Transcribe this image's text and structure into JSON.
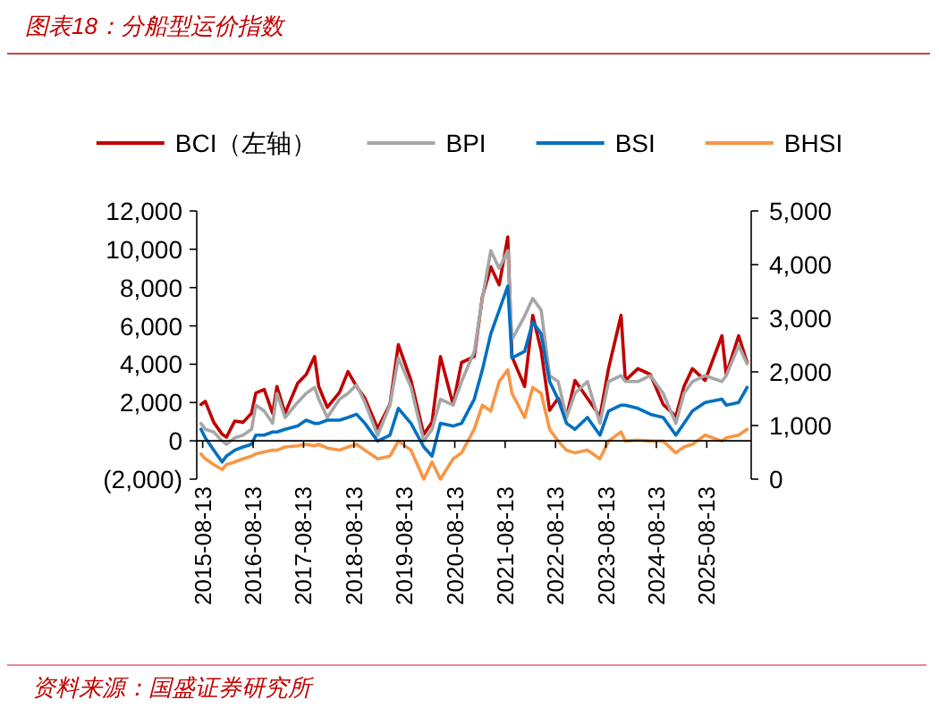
{
  "chart_data": {
    "type": "line",
    "title": "图表18：分船型运价指数",
    "annotations": [
      "资料来源：国盛证券研究所"
    ],
    "legend": "top",
    "x": [
      "2015-08",
      "2015-09",
      "2015-11",
      "2016-01",
      "2016-02",
      "2016-04",
      "2016-06",
      "2016-08",
      "2016-09",
      "2016-11",
      "2017-01",
      "2017-02",
      "2017-04",
      "2017-07",
      "2017-09",
      "2017-11",
      "2017-12",
      "2018-02",
      "2018-05",
      "2018-07",
      "2018-09",
      "2018-11",
      "2019-02",
      "2019-05",
      "2019-07",
      "2019-10",
      "2020-01",
      "2020-03",
      "2020-05",
      "2020-08",
      "2020-10",
      "2021-01",
      "2021-03",
      "2021-05",
      "2021-07",
      "2021-09",
      "2021-10",
      "2022-01",
      "2022-03",
      "2022-05",
      "2022-07",
      "2022-09",
      "2022-11",
      "2023-01",
      "2023-04",
      "2023-07",
      "2023-09",
      "2023-12",
      "2024-01",
      "2024-04",
      "2024-07",
      "2024-10",
      "2025-01",
      "2025-03",
      "2025-05",
      "2025-08",
      "2025-12",
      "2026-01",
      "2026-04",
      "2026-06"
    ],
    "series": [
      {
        "name": "BCI（左轴）",
        "color": "#c00000",
        "axis": "y",
        "values": [
          1900,
          2060,
          970,
          340,
          190,
          1030,
          970,
          1440,
          2500,
          2680,
          1440,
          2840,
          1440,
          3000,
          3460,
          4400,
          2840,
          1750,
          2530,
          3620,
          2840,
          2220,
          650,
          1900,
          5020,
          3150,
          340,
          970,
          4400,
          1900,
          4090,
          4400,
          7520,
          9080,
          8140,
          10640,
          4400,
          2840,
          6550,
          4710,
          1590,
          2220,
          1280,
          3150,
          2220,
          1280,
          3770,
          6550,
          3150,
          3770,
          3460,
          1900,
          1280,
          2840,
          3770,
          3150,
          5490,
          3460,
          5490,
          4090
        ]
      },
      {
        "name": "BPI",
        "color": "#a6a6a6",
        "axis": "y2",
        "values": [
          1040,
          930,
          880,
          710,
          650,
          770,
          820,
          930,
          1380,
          1270,
          1040,
          1600,
          1150,
          1430,
          1600,
          1710,
          1490,
          1150,
          1490,
          1600,
          1760,
          1430,
          820,
          1380,
          2260,
          1710,
          710,
          930,
          1490,
          1380,
          1820,
          2380,
          3370,
          4260,
          3930,
          4260,
          2600,
          3040,
          3370,
          3150,
          1930,
          1820,
          1150,
          1600,
          1820,
          1040,
          1820,
          1930,
          1820,
          1820,
          1930,
          1600,
          1040,
          1600,
          1820,
          1930,
          1820,
          1930,
          2490,
          2150
        ]
      },
      {
        "name": "BSI",
        "color": "#0070c0",
        "axis": "y2",
        "values": [
          930,
          770,
          540,
          320,
          430,
          540,
          600,
          650,
          820,
          820,
          880,
          880,
          930,
          990,
          1100,
          1040,
          1040,
          1100,
          1100,
          1150,
          1210,
          1040,
          710,
          820,
          1320,
          1040,
          600,
          430,
          1040,
          990,
          1040,
          1490,
          2040,
          2710,
          3150,
          3600,
          2260,
          2380,
          2930,
          2710,
          1820,
          1490,
          1040,
          930,
          1150,
          820,
          1270,
          1380,
          1380,
          1320,
          1210,
          1150,
          820,
          1040,
          1270,
          1430,
          1490,
          1380,
          1430,
          1710
        ]
      },
      {
        "name": "BHSI",
        "color": "#f79646",
        "axis": "y2",
        "values": [
          470,
          380,
          270,
          180,
          270,
          320,
          380,
          430,
          470,
          510,
          540,
          540,
          600,
          620,
          650,
          620,
          650,
          580,
          540,
          600,
          650,
          540,
          380,
          430,
          710,
          540,
          0,
          320,
          0,
          380,
          490,
          930,
          1380,
          1270,
          1820,
          2040,
          1600,
          1150,
          1710,
          1600,
          930,
          710,
          540,
          490,
          540,
          380,
          710,
          880,
          710,
          730,
          710,
          710,
          490,
          600,
          650,
          820,
          710,
          770,
          820,
          930
        ]
      }
    ],
    "xlim": [
      "2015-07-01",
      "2026-07-01"
    ],
    "xticks": [
      "2015-08-13",
      "2016-08-13",
      "2017-08-13",
      "2018-08-13",
      "2019-08-13",
      "2020-08-13",
      "2021-08-13",
      "2022-08-13",
      "2023-08-13",
      "2024-08-13",
      "2025-08-13"
    ],
    "ylim": [
      -2000,
      12000
    ],
    "yticks": [
      {
        "value": -2000,
        "label": "(2,000)"
      },
      0,
      {
        "value": 2000,
        "label": "2,000"
      },
      {
        "value": 4000,
        "label": "4,000"
      },
      {
        "value": 6000,
        "label": "6,000"
      },
      {
        "value": 8000,
        "label": "8,000"
      },
      {
        "value": 10000,
        "label": "10,000"
      },
      {
        "value": 12000,
        "label": "12,000"
      }
    ],
    "y2lim": [
      0,
      5000
    ],
    "y2ticks": [
      0,
      {
        "value": 1000,
        "label": "1,000"
      },
      {
        "value": 2000,
        "label": "2,000"
      },
      {
        "value": 3000,
        "label": "3,000"
      },
      {
        "value": 4000,
        "label": "4,000"
      },
      {
        "value": 5000,
        "label": "5,000"
      }
    ]
  }
}
